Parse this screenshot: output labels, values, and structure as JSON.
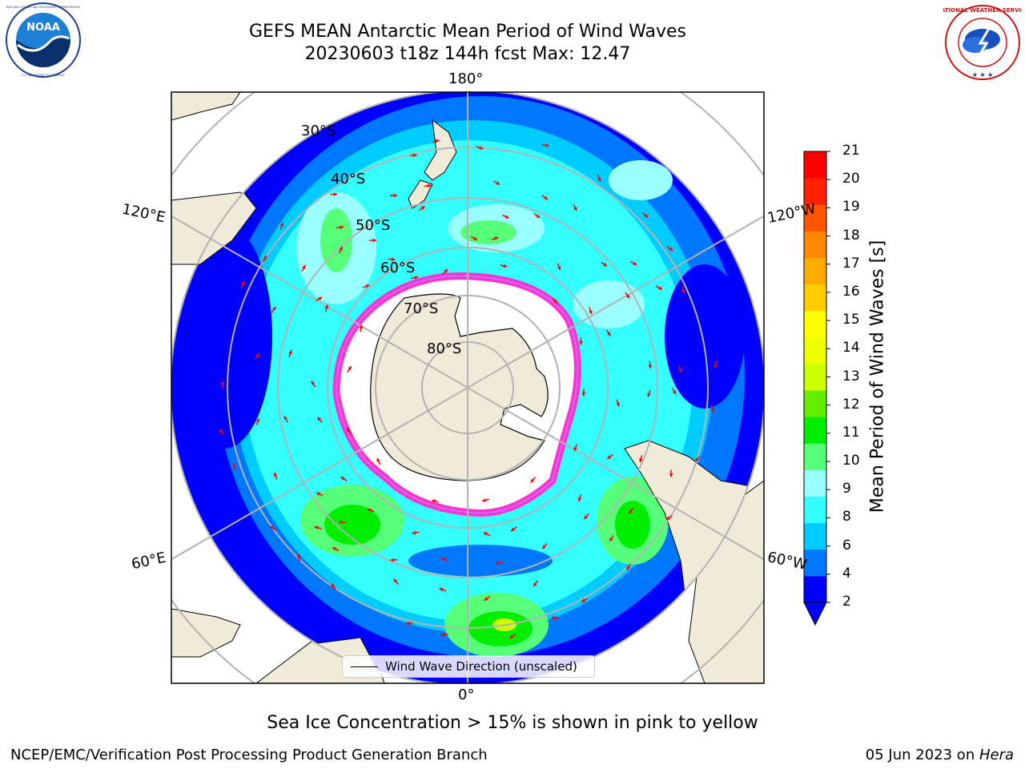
{
  "header": {
    "title_line1": "GEFS MEAN Antarctic Mean Period of Wind Waves",
    "title_line2": "20230603 t18z 144h fcst   Max: 12.47"
  },
  "logos": {
    "left": "NOAA",
    "left_ring_text": "NATIONAL OCEANIC AND ATMOSPHERIC ADMINISTRATION",
    "left_bottom_text": "U.S. DEPARTMENT OF COMMERCE",
    "right_ring_text": "NATIONAL WEATHER SERVICE"
  },
  "map": {
    "projection": "south-polar-stereographic",
    "longitude_labels": {
      "top": "180°",
      "bottom": "0°",
      "upper_left": "120°E",
      "lower_left": "60°E",
      "upper_right": "120°W",
      "lower_right": "60°W"
    },
    "latitude_labels": [
      "30°S",
      "40°S",
      "50°S",
      "60°S",
      "70°S",
      "80°S"
    ],
    "legend_label": "Wind Wave Direction (unscaled)",
    "colors": {
      "land": "#efebd8",
      "ice_edge": "#ff33cc",
      "ocean_shallow": "#33ffff"
    }
  },
  "colorbar": {
    "label": "Mean Period of Wind Waves [s]",
    "ticks": [
      "21",
      "20",
      "19",
      "18",
      "17",
      "16",
      "15",
      "14",
      "13",
      "12",
      "11",
      "10",
      "9",
      "8",
      "6",
      "4",
      "2"
    ],
    "bands": [
      "#0000ff",
      "#0077ff",
      "#00ccff",
      "#33ffff",
      "#99ffff",
      "#55ff77",
      "#00ee00",
      "#66ee00",
      "#ccff00",
      "#eeff00",
      "#ffff00",
      "#ffcc00",
      "#ffaa00",
      "#ff8800",
      "#ff5500",
      "#ff2200",
      "#ff0000"
    ]
  },
  "footer": {
    "note": "Sea Ice Concentration > 15% is shown in pink to yellow",
    "left": "NCEP/EMC/Verification Post Processing Product Generation Branch",
    "right_prefix": "05 Jun 2023 on ",
    "right_system": "Hera"
  }
}
